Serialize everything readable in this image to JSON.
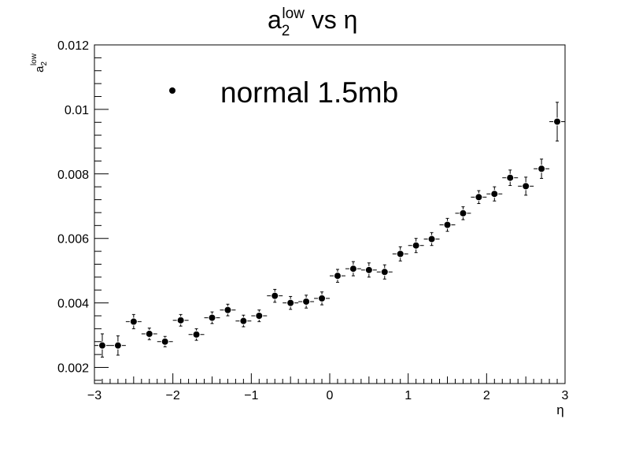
{
  "chart_data": {
    "type": "scatter",
    "title": {
      "base": "a",
      "sub": "2",
      "sup": "low",
      "rest": " vs η"
    },
    "xlabel": "η",
    "ylabel": {
      "base": "a",
      "sub": "2",
      "sup": "low"
    },
    "xlim": [
      -3,
      3
    ],
    "ylim": [
      0.0015,
      0.012
    ],
    "x_ticks": [
      -3,
      -2,
      -1,
      0,
      1,
      2,
      3
    ],
    "x_tick_labels": [
      "−3",
      "−2",
      "−1",
      "0",
      "1",
      "2",
      "3"
    ],
    "y_ticks": [
      0.002,
      0.004,
      0.006,
      0.008,
      0.01,
      0.012
    ],
    "y_tick_labels": [
      "0.002",
      "0.004",
      "0.006",
      "0.008",
      "0.01",
      "0.012"
    ],
    "legend": {
      "placement": "top-left",
      "entries": [
        "normal 1.5mb"
      ]
    },
    "grid": false,
    "series": [
      {
        "name": "normal 1.5mb",
        "x_err": 0.1,
        "x": [
          -2.9,
          -2.7,
          -2.5,
          -2.3,
          -2.1,
          -1.9,
          -1.7,
          -1.5,
          -1.3,
          -1.1,
          -0.9,
          -0.7,
          -0.5,
          -0.3,
          -0.1,
          0.1,
          0.3,
          0.5,
          0.7,
          0.9,
          1.1,
          1.3,
          1.5,
          1.7,
          1.9,
          2.1,
          2.3,
          2.5,
          2.7,
          2.9
        ],
        "y": [
          0.00268,
          0.00268,
          0.00342,
          0.00304,
          0.0028,
          0.00346,
          0.00302,
          0.00354,
          0.00378,
          0.00344,
          0.0036,
          0.00422,
          0.004,
          0.00404,
          0.00414,
          0.00484,
          0.00506,
          0.00502,
          0.00496,
          0.00552,
          0.00578,
          0.00598,
          0.00642,
          0.00678,
          0.00728,
          0.00738,
          0.00788,
          0.00762,
          0.00816,
          0.00962
        ],
        "y_err": [
          0.00036,
          0.0003,
          0.00022,
          0.00018,
          0.00016,
          0.00018,
          0.00018,
          0.00018,
          0.00018,
          0.00018,
          0.00018,
          0.0002,
          0.0002,
          0.0002,
          0.0002,
          0.0002,
          0.00022,
          0.00022,
          0.00022,
          0.00022,
          0.00022,
          0.0002,
          0.0002,
          0.0002,
          0.0002,
          0.00022,
          0.00024,
          0.00028,
          0.0003,
          0.0006
        ]
      }
    ]
  }
}
